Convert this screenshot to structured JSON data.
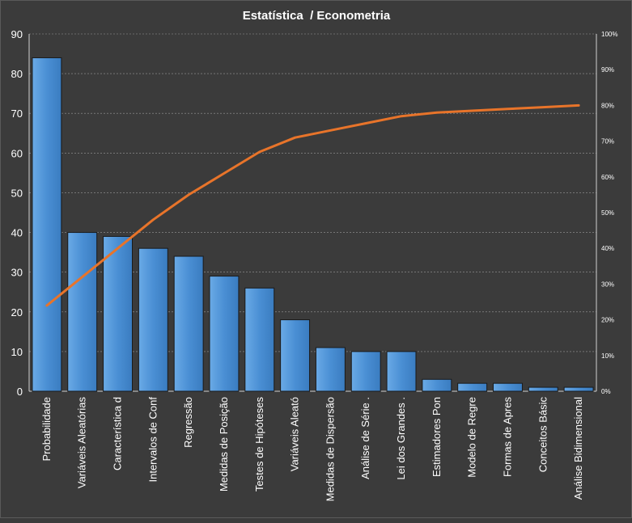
{
  "chart_data": {
    "type": "bar",
    "title": "Estatística  / Econometria",
    "categories": [
      "Probabilidade",
      "Variáveis Aleatórias",
      "Característica d",
      "Intervalos de Conf",
      "Regressão",
      "Medidas de Posição",
      "Testes de Hipóteses",
      "Variáveis Aleató",
      "Medidas de Dispersão",
      "Análise de Série .",
      "Lei dos Grandes .",
      "Estimadores Pon",
      "Modelo de Regre",
      "Formas  de Apres",
      "Conceitos Básic",
      "Análise Bidimensional"
    ],
    "series": [
      {
        "type": "bar",
        "values": [
          84,
          40,
          39,
          36,
          34,
          29,
          26,
          18,
          11,
          10,
          10,
          3,
          2,
          2,
          1,
          1
        ]
      },
      {
        "type": "line",
        "axis": "right",
        "values": [
          24,
          32,
          40,
          48,
          55,
          61,
          67,
          71,
          73,
          75,
          77,
          78,
          78.5,
          79,
          79.5,
          80
        ]
      }
    ],
    "y_left": {
      "min": 0,
      "max": 90,
      "ticks": [
        "0",
        "10",
        "20",
        "30",
        "40",
        "50",
        "60",
        "70",
        "80",
        "90"
      ]
    },
    "y_right": {
      "min": 0,
      "max": 100,
      "ticks": [
        "0%",
        "10%",
        "20%",
        "30%",
        "40%",
        "50%",
        "60%",
        "70%",
        "80%",
        "90%",
        "100%"
      ]
    },
    "grid": true,
    "colors": {
      "background": "#3b3b3b",
      "bar_fill": "#4a8fd4",
      "bar_stroke": "#1a1a1a",
      "line": "#e8742a",
      "grid": "#9a9a9a",
      "text": "#ffffff"
    }
  }
}
